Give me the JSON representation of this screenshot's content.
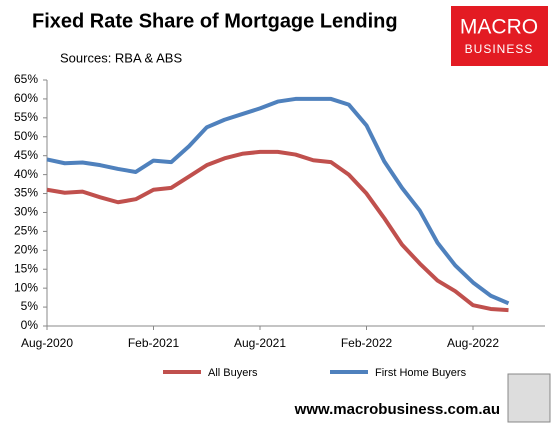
{
  "chart_data": {
    "type": "line",
    "title": "Fixed Rate Share of Mortgage Lending",
    "subtitle": "Sources: RBA & ABS",
    "logo": {
      "line1": "MACRO",
      "line2": "BUSINESS"
    },
    "website": "www.macrobusiness.com.au",
    "categories": [
      "Aug-2020",
      null,
      null,
      null,
      null,
      null,
      "Feb-2021",
      null,
      null,
      null,
      null,
      null,
      "Aug-2021",
      null,
      null,
      null,
      null,
      null,
      "Feb-2022",
      null,
      null,
      null,
      null,
      null,
      "Aug-2022",
      null,
      null
    ],
    "series": [
      {
        "name": "All Buyers",
        "color": "#c0504d",
        "values": [
          36,
          35.2,
          35.5,
          34,
          32.7,
          33.5,
          36,
          36.5,
          39.5,
          42.5,
          44.3,
          45.5,
          46,
          46,
          45.3,
          43.8,
          43.3,
          40,
          35,
          28.5,
          21.5,
          16.5,
          12,
          9.2,
          5.5,
          4.5,
          4.2
        ]
      },
      {
        "name": "First Home Buyers",
        "color": "#4f81bd",
        "values": [
          44,
          43,
          43.2,
          42.5,
          41.5,
          40.7,
          43.7,
          43.3,
          47.5,
          52.5,
          54.5,
          56,
          57.5,
          59.3,
          60,
          60,
          60,
          58.5,
          53,
          43.5,
          36.5,
          30.5,
          22,
          16,
          11.5,
          8,
          6
        ]
      }
    ],
    "ylim": [
      0,
      65
    ],
    "yticks": [
      {
        "value": 0,
        "label": "0%"
      },
      {
        "value": 5,
        "label": "5%"
      },
      {
        "value": 10,
        "label": "10%"
      },
      {
        "value": 15,
        "label": "15%"
      },
      {
        "value": 20,
        "label": "20%"
      },
      {
        "value": 25,
        "label": "25%"
      },
      {
        "value": 30,
        "label": "30%"
      },
      {
        "value": 35,
        "label": "35%"
      },
      {
        "value": 40,
        "label": "40%"
      },
      {
        "value": 45,
        "label": "45%"
      },
      {
        "value": 50,
        "label": "50%"
      },
      {
        "value": 55,
        "label": "55%"
      },
      {
        "value": 60,
        "label": "60%"
      },
      {
        "value": 65,
        "label": "65%"
      }
    ],
    "grid": false,
    "legend": "bottom"
  }
}
